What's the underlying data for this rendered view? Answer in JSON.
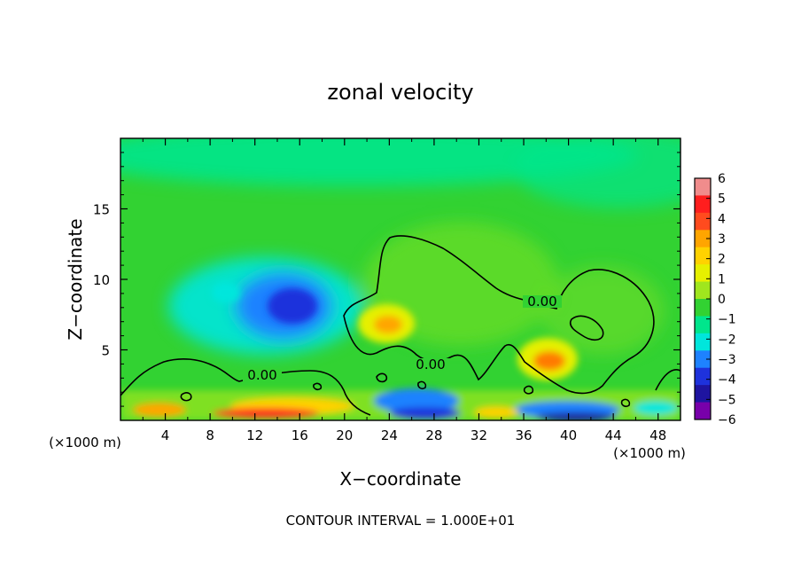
{
  "chart_data": {
    "type": "heatmap",
    "title": "zonal velocity",
    "xlabel": "X−coordinate",
    "ylabel": "Z−coordinate",
    "x_unit_left": "(×1000 m)",
    "x_unit_right": "(×1000 m)",
    "x_range": [
      0,
      50
    ],
    "y_range": [
      0,
      20
    ],
    "x_ticks": [
      4,
      8,
      12,
      16,
      20,
      24,
      28,
      32,
      36,
      40,
      44,
      48
    ],
    "y_ticks": [
      5,
      10,
      15
    ],
    "footer": "CONTOUR INTERVAL = 1.000E+01",
    "contour_label": "0.00",
    "colorbar": {
      "levels": [
        6,
        5,
        4,
        3,
        2,
        1,
        0,
        -1,
        -2,
        -3,
        -4,
        -5,
        -6
      ],
      "level_labels": [
        "6",
        "5",
        "4",
        "3",
        "2",
        "1",
        "0",
        "−1",
        "−2",
        "−3",
        "−4",
        "−5",
        "−6"
      ],
      "colors": [
        "#f08c8c",
        "#ff1e1e",
        "#ff4b1e",
        "#ffa500",
        "#ffd200",
        "#e6f000",
        "#a0e61e",
        "#32d232",
        "#00e68c",
        "#00e6dc",
        "#1e82ff",
        "#1e32dc",
        "#1e14a0",
        "#7800aa"
      ]
    },
    "features": [
      {
        "kind": "min",
        "x": 15.5,
        "z": 8.0,
        "value": -3.5
      },
      {
        "kind": "min",
        "x": 11.0,
        "z": 9.0,
        "value": -1.8
      },
      {
        "kind": "max",
        "x": 24.0,
        "z": 6.8,
        "value": 2.5
      },
      {
        "kind": "max",
        "x": 38.0,
        "z": 4.2,
        "value": 3.2
      },
      {
        "kind": "max",
        "x": 33.0,
        "z": 7.0,
        "value": 0.8
      },
      {
        "kind": "max",
        "x": 19.0,
        "z": 0.6,
        "value": 4.0
      },
      {
        "kind": "min",
        "x": 28.0,
        "z": 1.0,
        "value": -3.0
      },
      {
        "kind": "min",
        "x": 40.0,
        "z": 0.6,
        "value": -4.0
      }
    ]
  }
}
